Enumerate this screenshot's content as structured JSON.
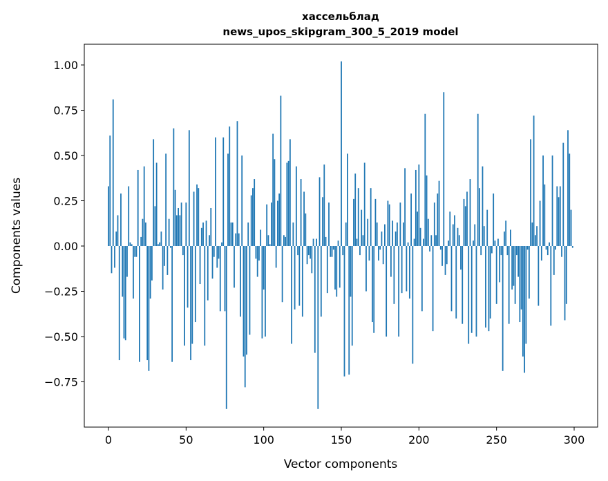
{
  "chart_data": {
    "type": "bar",
    "title_line1": "хассельблад",
    "title_line2": "news_upos_skipgram_300_5_2019 model",
    "xlabel": "Vector components",
    "ylabel": "Components values",
    "xlim": [
      -15,
      315
    ],
    "ylim": [
      -1.0,
      1.12
    ],
    "xticks": [
      0,
      50,
      100,
      150,
      200,
      250,
      300
    ],
    "xtick_labels": [
      "0",
      "50",
      "100",
      "150",
      "200",
      "250",
      "300"
    ],
    "yticks": [
      1.0,
      0.75,
      0.5,
      0.25,
      0.0,
      -0.25,
      -0.5,
      -0.75
    ],
    "ytick_labels": [
      "1.00",
      "0.75",
      "0.50",
      "0.25",
      "0.00",
      "−0.25",
      "−0.50",
      "−0.75"
    ],
    "bar_color": "#1f77b4",
    "values": [
      0.33,
      0.61,
      -0.15,
      0.81,
      -0.12,
      0.08,
      0.17,
      -0.63,
      0.29,
      -0.28,
      -0.51,
      -0.52,
      -0.17,
      0.33,
      0.02,
      0.01,
      -0.29,
      -0.06,
      -0.06,
      0.42,
      -0.64,
      0.05,
      0.15,
      0.44,
      0.13,
      -0.63,
      -0.69,
      -0.29,
      -0.19,
      0.59,
      0.22,
      0.46,
      0.01,
      0.02,
      0.08,
      -0.24,
      -0.11,
      0.51,
      -0.16,
      0.15,
      -0.01,
      -0.64,
      0.65,
      0.31,
      0.17,
      0.21,
      0.17,
      0.24,
      -0.05,
      -0.55,
      0.24,
      -0.34,
      0.64,
      -0.63,
      -0.54,
      0.3,
      -0.42,
      0.34,
      0.32,
      -0.21,
      0.1,
      0.13,
      -0.55,
      0.14,
      -0.3,
      0.06,
      0.21,
      -0.18,
      -0.06,
      0.6,
      -0.12,
      -0.07,
      -0.36,
      0.02,
      0.6,
      -0.36,
      -0.9,
      0.51,
      0.66,
      0.13,
      0.13,
      -0.23,
      0.07,
      0.69,
      0.07,
      -0.39,
      0.5,
      -0.61,
      -0.78,
      -0.6,
      0.13,
      -0.49,
      0.28,
      0.32,
      0.37,
      -0.07,
      -0.17,
      -0.08,
      0.09,
      -0.51,
      -0.24,
      -0.5,
      0.23,
      0.06,
      0.01,
      0.24,
      0.62,
      0.48,
      -0.12,
      0.25,
      0.29,
      0.83,
      -0.31,
      0.06,
      0.05,
      0.46,
      0.47,
      0.59,
      -0.54,
      0.13,
      -0.35,
      0.44,
      -0.05,
      -0.33,
      0.37,
      -0.39,
      0.3,
      0.18,
      -0.1,
      -0.05,
      -0.07,
      -0.15,
      0.04,
      -0.59,
      0.04,
      -0.9,
      0.38,
      -0.39,
      0.27,
      0.45,
      0.05,
      -0.26,
      0.24,
      -0.06,
      -0.06,
      -0.02,
      -0.24,
      -0.28,
      0.03,
      -0.23,
      1.02,
      -0.05,
      -0.72,
      0.13,
      0.51,
      -0.71,
      -0.28,
      -0.55,
      0.26,
      0.4,
      0.04,
      0.32,
      -0.05,
      0.2,
      0.06,
      0.46,
      -0.25,
      0.15,
      -0.08,
      0.32,
      -0.42,
      -0.48,
      0.26,
      0.13,
      -0.08,
      -0.02,
      0.08,
      -0.1,
      0.12,
      -0.5,
      0.25,
      0.23,
      -0.17,
      0.14,
      -0.32,
      0.08,
      0.13,
      -0.5,
      0.24,
      -0.26,
      0.13,
      0.43,
      -0.25,
      0.02,
      -0.29,
      0.29,
      -0.65,
      0.04,
      0.42,
      0.19,
      0.45,
      0.1,
      -0.36,
      0.04,
      0.73,
      0.39,
      0.15,
      -0.03,
      0.06,
      -0.47,
      0.24,
      0.06,
      0.29,
      0.36,
      -0.02,
      -0.11,
      0.85,
      -0.16,
      -0.1,
      0.03,
      0.19,
      -0.36,
      0.12,
      0.17,
      -0.4,
      0.1,
      0.06,
      -0.13,
      -0.43,
      0.26,
      0.22,
      0.3,
      -0.54,
      0.37,
      -0.48,
      0.03,
      0.12,
      -0.5,
      0.73,
      0.32,
      -0.05,
      0.44,
      0.11,
      -0.45,
      0.2,
      -0.47,
      -0.4,
      -0.04,
      0.29,
      0.03,
      -0.32,
      0.04,
      -0.2,
      -0.05,
      -0.69,
      0.08,
      0.14,
      -0.05,
      -0.43,
      0.09,
      -0.24,
      -0.22,
      -0.32,
      -0.05,
      -0.17,
      -0.42,
      -0.35,
      -0.61,
      -0.7,
      -0.54,
      -0.02,
      -0.29,
      0.59,
      0.13,
      0.72,
      0.06,
      0.11,
      -0.33,
      0.25,
      -0.08,
      0.5,
      0.34,
      -0.02,
      -0.05,
      0.02,
      -0.44,
      0.5,
      -0.16,
      -0.02,
      0.33,
      0.27,
      0.33,
      -0.06,
      0.57,
      -0.41,
      -0.32,
      0.64,
      0.51,
      0.2,
      -0.01
    ]
  }
}
